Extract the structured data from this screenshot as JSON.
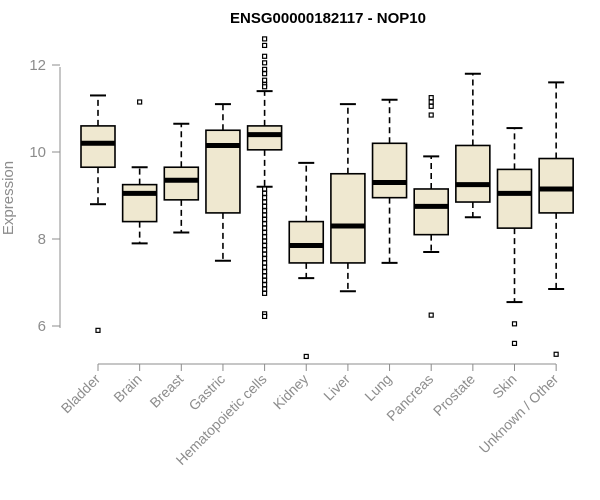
{
  "chart_data": {
    "type": "boxplot",
    "title": "ENSG00000182117 - NOP10",
    "xlabel": "",
    "ylabel": "Expression",
    "ylim": [
      5.0,
      12.8
    ],
    "yticks": [
      6,
      8,
      10,
      12
    ],
    "ytick_labels": [
      "6",
      "8",
      "10",
      "12"
    ],
    "box_fill": "#efe8d0",
    "box_stroke": "#000000",
    "axis_color": "#8c8c8c",
    "categories": [
      "Bladder",
      "Brain",
      "Breast",
      "Gastric",
      "Hematopoietic cells",
      "Kidney",
      "Liver",
      "Lung",
      "Pancreas",
      "Prostate",
      "Skin",
      "Unknown / Other"
    ],
    "boxes": [
      {
        "q1": 9.65,
        "median": 10.2,
        "q3": 10.6,
        "whisker_low": 8.8,
        "whisker_high": 11.3,
        "outliers": [
          5.9
        ]
      },
      {
        "q1": 8.4,
        "median": 9.05,
        "q3": 9.25,
        "whisker_low": 7.9,
        "whisker_high": 9.65,
        "outliers": [
          11.15
        ]
      },
      {
        "q1": 8.9,
        "median": 9.35,
        "q3": 9.65,
        "whisker_low": 8.15,
        "whisker_high": 10.65,
        "outliers": []
      },
      {
        "q1": 8.6,
        "median": 10.15,
        "q3": 10.5,
        "whisker_low": 7.5,
        "whisker_high": 11.1,
        "outliers": []
      },
      {
        "q1": 10.05,
        "median": 10.4,
        "q3": 10.6,
        "whisker_low": 9.2,
        "whisker_high": 11.4,
        "outliers": [
          12.6,
          12.45,
          12.2,
          12.05,
          11.9,
          11.8,
          11.65,
          11.55,
          11.5,
          9.15,
          9.05,
          8.95,
          8.85,
          8.75,
          8.65,
          8.55,
          8.45,
          8.35,
          8.25,
          8.15,
          8.05,
          7.95,
          7.85,
          7.75,
          7.65,
          7.55,
          7.45,
          7.35,
          7.25,
          7.15,
          7.05,
          6.95,
          6.85,
          6.75,
          6.28,
          6.22
        ]
      },
      {
        "q1": 7.45,
        "median": 7.85,
        "q3": 8.4,
        "whisker_low": 7.1,
        "whisker_high": 9.75,
        "outliers": [
          5.3
        ]
      },
      {
        "q1": 7.45,
        "median": 8.3,
        "q3": 9.5,
        "whisker_low": 6.8,
        "whisker_high": 11.1,
        "outliers": []
      },
      {
        "q1": 8.95,
        "median": 9.3,
        "q3": 10.2,
        "whisker_low": 7.45,
        "whisker_high": 11.2,
        "outliers": []
      },
      {
        "q1": 8.1,
        "median": 8.75,
        "q3": 9.15,
        "whisker_low": 7.7,
        "whisker_high": 9.9,
        "outliers": [
          11.25,
          11.15,
          11.05,
          10.85,
          6.25
        ]
      },
      {
        "q1": 8.85,
        "median": 9.25,
        "q3": 10.15,
        "whisker_low": 8.5,
        "whisker_high": 11.8,
        "outliers": []
      },
      {
        "q1": 8.25,
        "median": 9.05,
        "q3": 9.6,
        "whisker_low": 6.55,
        "whisker_high": 10.55,
        "outliers": [
          6.05,
          5.6
        ]
      },
      {
        "q1": 8.6,
        "median": 9.15,
        "q3": 9.85,
        "whisker_low": 6.85,
        "whisker_high": 11.6,
        "outliers": [
          5.35
        ]
      }
    ]
  }
}
